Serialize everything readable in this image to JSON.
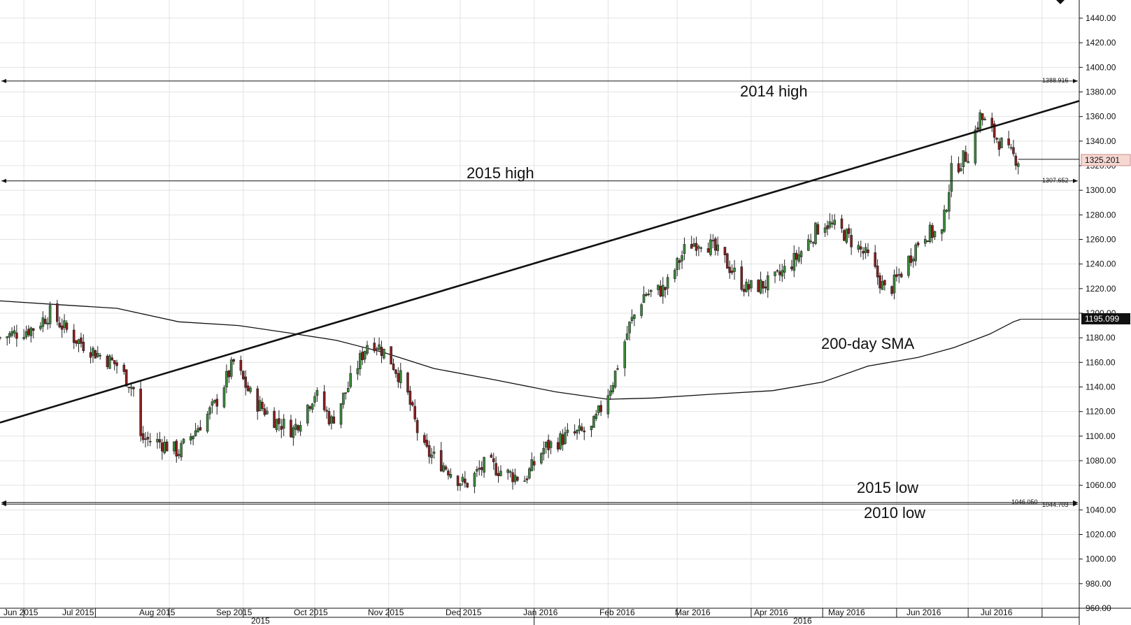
{
  "chart_data": {
    "type": "candlestick",
    "title": "",
    "xlabel": "",
    "ylabel": "",
    "ylim": [
      960,
      1440
    ],
    "y_ticks": [
      "960.00",
      "980.00",
      "1000.00",
      "1020.00",
      "1040.00",
      "1060.00",
      "1080.00",
      "1100.00",
      "1120.00",
      "1140.00",
      "1160.00",
      "1180.00",
      "1200.00",
      "1220.00",
      "1240.00",
      "1260.00",
      "1280.00",
      "1300.00",
      "1320.00",
      "1340.00",
      "1360.00",
      "1380.00",
      "1400.00",
      "1420.00",
      "1440.00"
    ],
    "x_months": [
      "Jun 2015",
      "Jul 2015",
      "Aug 2015",
      "Sep 2015",
      "Oct 2015",
      "Nov 2015",
      "Dec 2015",
      "Jan 2016",
      "Feb 2016",
      "Mar 2016",
      "Apr 2016",
      "May 2016",
      "Jun 2016",
      "Jul 2016"
    ],
    "x_years": [
      "2015",
      "2016"
    ],
    "grid": true,
    "current_price": {
      "value": 1325.201,
      "label": "1325.201"
    },
    "sma_value": {
      "value": 1195.099,
      "label": "1195.099"
    },
    "horizontal_levels": [
      {
        "label": "2014 high",
        "value": 1388.916,
        "value_label": "1388.916"
      },
      {
        "label": "2015 high",
        "value": 1307.652,
        "value_label": "1307.652"
      },
      {
        "label": "2015 low",
        "value": 1046.05,
        "value_label": "1046.050"
      },
      {
        "label": "2010 low",
        "value": 1044.703,
        "value_label": "1044.703"
      }
    ],
    "trendline": {
      "start": {
        "date": "2015-05-22",
        "value": 1111
      },
      "end": {
        "date": "2016-08-31",
        "value": 1381
      }
    },
    "sma_label": "200-day SMA",
    "sma_200": [
      {
        "date": "2015-05-22",
        "value": 1210
      },
      {
        "date": "2015-06-15",
        "value": 1207
      },
      {
        "date": "2015-07-10",
        "value": 1204
      },
      {
        "date": "2015-08-05",
        "value": 1193
      },
      {
        "date": "2015-08-30",
        "value": 1190
      },
      {
        "date": "2015-09-20",
        "value": 1184
      },
      {
        "date": "2015-10-10",
        "value": 1178
      },
      {
        "date": "2015-10-30",
        "value": 1168
      },
      {
        "date": "2015-11-20",
        "value": 1155
      },
      {
        "date": "2015-12-15",
        "value": 1146
      },
      {
        "date": "2016-01-10",
        "value": 1136
      },
      {
        "date": "2016-02-01",
        "value": 1130
      },
      {
        "date": "2016-02-20",
        "value": 1131
      },
      {
        "date": "2016-03-15",
        "value": 1134
      },
      {
        "date": "2016-04-10",
        "value": 1137
      },
      {
        "date": "2016-05-01",
        "value": 1144
      },
      {
        "date": "2016-05-20",
        "value": 1157
      },
      {
        "date": "2016-06-10",
        "value": 1164
      },
      {
        "date": "2016-06-25",
        "value": 1172
      },
      {
        "date": "2016-07-10",
        "value": 1183
      },
      {
        "date": "2016-07-20",
        "value": 1193
      },
      {
        "date": "2016-07-23",
        "value": 1195
      }
    ],
    "price_path": [
      {
        "date": "2015-05-22",
        "value": 1180
      },
      {
        "date": "2015-06-05",
        "value": 1188
      },
      {
        "date": "2015-06-12",
        "value": 1200
      },
      {
        "date": "2015-06-22",
        "value": 1180
      },
      {
        "date": "2015-07-01",
        "value": 1168
      },
      {
        "date": "2015-07-10",
        "value": 1158
      },
      {
        "date": "2015-07-17",
        "value": 1138
      },
      {
        "date": "2015-07-20",
        "value": 1098
      },
      {
        "date": "2015-07-28",
        "value": 1095
      },
      {
        "date": "2015-08-05",
        "value": 1087
      },
      {
        "date": "2015-08-12",
        "value": 1105
      },
      {
        "date": "2015-08-20",
        "value": 1125
      },
      {
        "date": "2015-08-28",
        "value": 1160
      },
      {
        "date": "2015-09-05",
        "value": 1130
      },
      {
        "date": "2015-09-15",
        "value": 1112
      },
      {
        "date": "2015-09-22",
        "value": 1105
      },
      {
        "date": "2015-10-01",
        "value": 1135
      },
      {
        "date": "2015-10-08",
        "value": 1112
      },
      {
        "date": "2015-10-15",
        "value": 1140
      },
      {
        "date": "2015-10-24",
        "value": 1180
      },
      {
        "date": "2015-11-01",
        "value": 1165
      },
      {
        "date": "2015-11-08",
        "value": 1140
      },
      {
        "date": "2015-11-15",
        "value": 1090
      },
      {
        "date": "2015-11-25",
        "value": 1075
      },
      {
        "date": "2015-12-03",
        "value": 1060
      },
      {
        "date": "2015-12-12",
        "value": 1078
      },
      {
        "date": "2015-12-20",
        "value": 1070
      },
      {
        "date": "2015-12-28",
        "value": 1065
      },
      {
        "date": "2016-01-05",
        "value": 1090
      },
      {
        "date": "2016-01-15",
        "value": 1100
      },
      {
        "date": "2016-01-25",
        "value": 1105
      },
      {
        "date": "2016-02-03",
        "value": 1145
      },
      {
        "date": "2016-02-10",
        "value": 1190
      },
      {
        "date": "2016-02-16",
        "value": 1215
      },
      {
        "date": "2016-02-25",
        "value": 1220
      },
      {
        "date": "2016-03-05",
        "value": 1255
      },
      {
        "date": "2016-03-12",
        "value": 1260
      },
      {
        "date": "2016-03-20",
        "value": 1245
      },
      {
        "date": "2016-03-30",
        "value": 1220
      },
      {
        "date": "2016-04-10",
        "value": 1225
      },
      {
        "date": "2016-04-20",
        "value": 1245
      },
      {
        "date": "2016-05-01",
        "value": 1275
      },
      {
        "date": "2016-05-10",
        "value": 1265
      },
      {
        "date": "2016-05-20",
        "value": 1245
      },
      {
        "date": "2016-05-28",
        "value": 1215
      },
      {
        "date": "2016-06-05",
        "value": 1240
      },
      {
        "date": "2016-06-12",
        "value": 1265
      },
      {
        "date": "2016-06-20",
        "value": 1265
      },
      {
        "date": "2016-06-24",
        "value": 1315
      },
      {
        "date": "2016-07-01",
        "value": 1330
      },
      {
        "date": "2016-07-06",
        "value": 1360
      },
      {
        "date": "2016-07-12",
        "value": 1345
      },
      {
        "date": "2016-07-18",
        "value": 1330
      },
      {
        "date": "2016-07-22",
        "value": 1325
      }
    ]
  }
}
